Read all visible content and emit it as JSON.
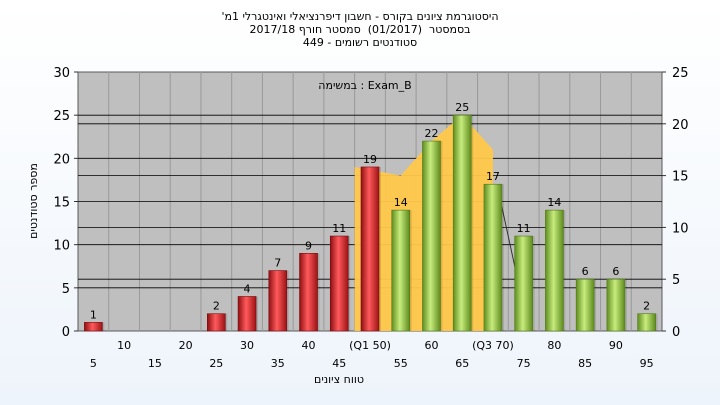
{
  "titles": [
    "'היסטוגרמת ציונים בקורס - חשבון דיפרנציאלי ואינטגרלי 1מ",
    "בסמסטר  (01/2017)  סמסטר חורף 2017/18",
    "סטודנטים רשומים - 449"
  ],
  "chart_data": {
    "type": "bar",
    "title": "'היסטוגרמת ציונים בקורס - חשבון דיפרנציאלי ואינטגרלי 1מ",
    "subtitle": [
      "בסמסטר  (01/2017)  סמסטר חורף 2017/18",
      "סטודנטים רשומים - 449"
    ],
    "annotation": "במשימה : Exam_B",
    "xlabel": "טווח ציונים",
    "ylabel": "מספר סטודנטים",
    "ylim": [
      0,
      30
    ],
    "y2lim": [
      0,
      25
    ],
    "y_ticks": [
      0,
      5,
      10,
      15,
      20,
      25,
      30
    ],
    "y2_ticks": [
      0,
      5,
      10,
      15,
      20,
      25
    ],
    "categories": [
      "5",
      "10",
      "15",
      "20",
      "25",
      "30",
      "35",
      "40",
      "45",
      "50",
      "55",
      "60",
      "65",
      "70",
      "75",
      "80",
      "85",
      "90",
      "95"
    ],
    "x_tick_labels": [
      "5",
      "10",
      "15",
      "20",
      "25",
      "30",
      "35",
      "40",
      "45",
      "(Q1 50)",
      "55",
      "60",
      "65",
      "(Q3 70)",
      "75",
      "80",
      "85",
      "90",
      "95"
    ],
    "values": [
      1,
      0,
      0,
      0,
      2,
      4,
      7,
      9,
      11,
      19,
      14,
      22,
      25,
      17,
      11,
      14,
      6,
      6,
      2
    ],
    "bar_colors": [
      "red",
      "none",
      "none",
      "none",
      "red",
      "red",
      "red",
      "red",
      "red",
      "red",
      "green",
      "green",
      "green",
      "green",
      "green",
      "green",
      "green",
      "green",
      "green"
    ],
    "quartile_band": {
      "from": "50",
      "to": "70",
      "values": [
        19,
        18,
        22,
        25,
        21
      ],
      "color": "#ffc84a"
    },
    "distribution_line": {
      "from": "70",
      "to": "75",
      "values": [
        17,
        7
      ]
    },
    "colors": {
      "red": "#d9262b",
      "green": "#8fc23e",
      "band": "#ffc84a",
      "plot_bg": "#bfbfbf"
    },
    "grid": true,
    "legend": "none"
  }
}
